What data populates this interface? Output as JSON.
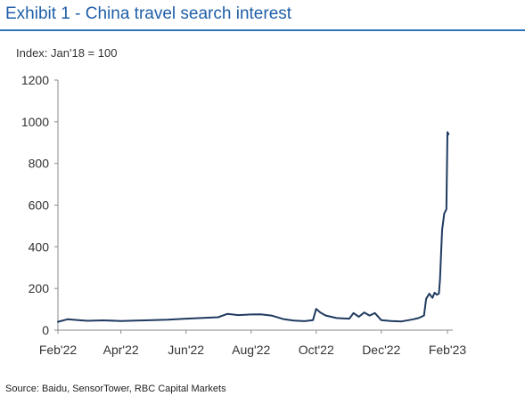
{
  "title": "Exhibit 1 - China travel search interest",
  "source": "Source: Baidu, SensorTower, RBC Capital Markets",
  "chart_data": {
    "type": "line",
    "title": "Exhibit 1 - China travel search interest",
    "unit_label": "Index: Jan'18 = 100",
    "xlabel": "",
    "ylabel": "",
    "ylim": [
      0,
      1200
    ],
    "y_ticks": [
      "0",
      "200",
      "400",
      "600",
      "800",
      "1000",
      "1200"
    ],
    "x_ticks": [
      "Feb'22",
      "Apr'22",
      "Jun'22",
      "Aug'22",
      "Oct'22",
      "Dec'22",
      "Feb'23"
    ],
    "x_range": [
      "2022-02-01",
      "2023-02-01"
    ],
    "grid": false,
    "legend": "none",
    "line_color": "#1f3a5f",
    "series": [
      {
        "x": [
          "2022-02-01",
          "2022-02-10",
          "2022-02-20",
          "2022-03-01",
          "2022-03-15",
          "2022-04-01",
          "2022-04-15",
          "2022-05-01",
          "2022-05-15",
          "2022-06-01",
          "2022-06-15",
          "2022-07-01",
          "2022-07-10",
          "2022-07-20",
          "2022-08-01",
          "2022-08-10",
          "2022-08-20",
          "2022-09-01",
          "2022-09-10",
          "2022-09-20",
          "2022-09-28",
          "2022-10-01",
          "2022-10-05",
          "2022-10-10",
          "2022-10-20",
          "2022-11-01",
          "2022-11-05",
          "2022-11-10",
          "2022-11-15",
          "2022-11-20",
          "2022-11-25",
          "2022-12-01",
          "2022-12-10",
          "2022-12-20",
          "2022-12-31",
          "2023-01-05",
          "2023-01-10",
          "2023-01-12",
          "2023-01-15",
          "2023-01-18",
          "2023-01-20",
          "2023-01-22",
          "2023-01-24",
          "2023-01-25",
          "2023-01-27",
          "2023-01-29",
          "2023-01-31",
          "2023-02-01",
          "2023-02-02"
        ],
        "values": [
          40,
          52,
          48,
          45,
          47,
          44,
          46,
          48,
          50,
          55,
          58,
          62,
          78,
          72,
          75,
          76,
          70,
          52,
          46,
          43,
          48,
          102,
          84,
          70,
          58,
          55,
          82,
          64,
          85,
          70,
          82,
          48,
          44,
          42,
          52,
          58,
          70,
          150,
          175,
          155,
          180,
          170,
          175,
          240,
          480,
          560,
          580,
          950,
          940
        ]
      }
    ]
  }
}
